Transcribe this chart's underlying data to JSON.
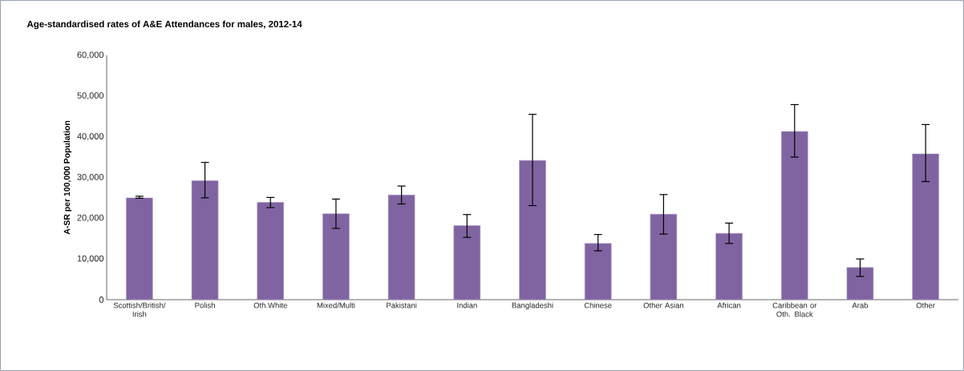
{
  "chart_data": {
    "type": "bar",
    "title": "Age-standardised rates of A&E Attendances for males, 2012-14",
    "ylabel": "A-SR per 100,000 Population",
    "categories": [
      "Scottish/British/ Irish",
      "Polish",
      "Oth.White",
      "Mixed/Multi",
      "Pakistani",
      "Indian",
      "Bangladeshi",
      "Chinese",
      "Other Asian",
      "African",
      "Caribbean or Oth. Black",
      "Arab",
      "Other"
    ],
    "values": [
      25000,
      29200,
      23900,
      21100,
      25700,
      18200,
      34200,
      13800,
      21000,
      16300,
      41300,
      7900,
      35800
    ],
    "errors": [
      [
        24900,
        25400
      ],
      [
        25000,
        33700
      ],
      [
        22600,
        25100
      ],
      [
        17500,
        24700
      ],
      [
        23500,
        27900
      ],
      [
        15300,
        20900
      ],
      [
        23100,
        45500
      ],
      [
        12000,
        16000
      ],
      [
        16100,
        25800
      ],
      [
        13800,
        18800
      ],
      [
        35000,
        47900
      ],
      [
        5700,
        10000
      ],
      [
        29000,
        43000
      ]
    ],
    "color": "#8064a2",
    "ylim": [
      0,
      60000
    ],
    "yticks": [
      {
        "value": 0,
        "label": "0"
      },
      {
        "value": 10000,
        "label": "10,000"
      },
      {
        "value": 20000,
        "label": "20,000"
      },
      {
        "value": 30000,
        "label": "30,000"
      },
      {
        "value": 40000,
        "label": "40,000"
      },
      {
        "value": 50000,
        "label": "50,000"
      },
      {
        "value": 60000,
        "label": "60,000"
      }
    ],
    "grid": false
  }
}
